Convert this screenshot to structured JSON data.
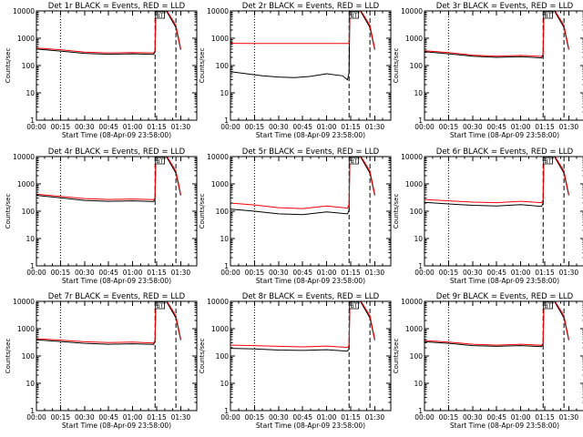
{
  "figure": {
    "xlabel": "Start Time (08-Apr-09 23:58:00)",
    "ylabel": "Counts/sec",
    "bt_label": "BT",
    "colors": {
      "events": "#000000",
      "lld": "#ff0000",
      "background": "#ffffff"
    }
  },
  "chart_data": [
    {
      "type": "line",
      "title": "Det 1r BLACK = Events, RED = LLD",
      "xlabel": "Start Time (08-Apr-09 23:58:00)",
      "ylabel": "Counts/sec",
      "x_ticks": [
        "00:00",
        "00:15",
        "00:30",
        "00:45",
        "01:00",
        "01:15",
        "01:30"
      ],
      "x_tick_minutes": [
        0,
        15,
        30,
        45,
        60,
        75,
        90
      ],
      "xlim_minutes": [
        0,
        100
      ],
      "y_scale": "log",
      "ylim": [
        1,
        10000
      ],
      "y_ticks": [
        "1",
        "10",
        "100",
        "1000",
        "10000"
      ],
      "dotted_vline_minutes": 15,
      "dashed_vline_minutes": [
        74,
        87
      ],
      "bt_marker_minutes": 77,
      "series": [
        {
          "color": "#000000",
          "x_minutes": [
            0,
            15,
            30,
            45,
            60,
            73,
            74,
            74.5,
            77,
            81,
            87,
            90
          ],
          "values": [
            400,
            340,
            280,
            260,
            270,
            255,
            310,
            10000,
            12000,
            10000,
            2500,
            380
          ]
        },
        {
          "color": "#ff0000",
          "x_minutes": [
            0,
            15,
            30,
            45,
            60,
            73,
            74,
            74.5,
            77,
            81,
            87,
            90
          ],
          "values": [
            440,
            380,
            310,
            290,
            300,
            290,
            340,
            10000,
            13000,
            11000,
            3000,
            420
          ]
        }
      ]
    },
    {
      "type": "line",
      "title": "Det 2r BLACK = Events, RED = LLD",
      "xlabel": "Start Time (08-Apr-09 23:58:00)",
      "ylabel": "Counts/sec",
      "x_ticks": [
        "00:00",
        "00:15",
        "00:30",
        "00:45",
        "01:00",
        "01:15",
        "01:30"
      ],
      "x_tick_minutes": [
        0,
        15,
        30,
        45,
        60,
        75,
        90
      ],
      "xlim_minutes": [
        0,
        100
      ],
      "y_scale": "log",
      "ylim": [
        1,
        10000
      ],
      "y_ticks": [
        "1",
        "10",
        "100",
        "1000",
        "10000"
      ],
      "dotted_vline_minutes": 15,
      "dashed_vline_minutes": [
        74,
        87
      ],
      "bt_marker_minutes": 77,
      "series": [
        {
          "color": "#000000",
          "x_minutes": [
            0,
            10,
            20,
            30,
            40,
            50,
            60,
            70,
            73,
            74,
            74.5,
            77,
            81,
            87,
            90
          ],
          "values": [
            60,
            50,
            42,
            38,
            36,
            40,
            50,
            42,
            30,
            55,
            10000,
            12000,
            10000,
            2500,
            380
          ]
        },
        {
          "color": "#ff0000",
          "x_minutes": [
            0,
            15,
            30,
            45,
            60,
            73,
            74,
            74.5,
            77,
            81,
            87,
            90
          ],
          "values": [
            650,
            640,
            640,
            640,
            645,
            645,
            650,
            10000,
            13000,
            11000,
            3000,
            420
          ]
        }
      ]
    },
    {
      "type": "line",
      "title": "Det 3r BLACK = Events, RED = LLD",
      "xlabel": "Start Time (08-Apr-09 23:58:00)",
      "ylabel": "Counts/sec",
      "x_ticks": [
        "00:00",
        "00:15",
        "00:30",
        "00:45",
        "01:00",
        "01:15",
        "01:30"
      ],
      "x_tick_minutes": [
        0,
        15,
        30,
        45,
        60,
        75,
        90
      ],
      "xlim_minutes": [
        0,
        100
      ],
      "y_scale": "log",
      "ylim": [
        1,
        10000
      ],
      "y_ticks": [
        "1",
        "10",
        "100",
        "1000",
        "10000"
      ],
      "dotted_vline_minutes": 15,
      "dashed_vline_minutes": [
        74,
        87
      ],
      "bt_marker_minutes": 77,
      "series": [
        {
          "color": "#000000",
          "x_minutes": [
            0,
            15,
            30,
            45,
            60,
            73,
            74,
            74.5,
            77,
            81,
            87,
            90
          ],
          "values": [
            320,
            270,
            220,
            200,
            210,
            190,
            230,
            10000,
            12000,
            10000,
            2500,
            380
          ]
        },
        {
          "color": "#ff0000",
          "x_minutes": [
            0,
            15,
            30,
            45,
            60,
            73,
            74,
            74.5,
            77,
            81,
            87,
            90
          ],
          "values": [
            350,
            300,
            240,
            220,
            235,
            215,
            255,
            10000,
            13000,
            11000,
            3000,
            420
          ]
        }
      ]
    },
    {
      "type": "line",
      "title": "Det 4r BLACK = Events, RED = LLD",
      "xlabel": "Start Time (08-Apr-09 23:58:00)",
      "ylabel": "Counts/sec",
      "x_ticks": [
        "00:00",
        "00:15",
        "00:30",
        "00:45",
        "01:00",
        "01:15",
        "01:30"
      ],
      "x_tick_minutes": [
        0,
        15,
        30,
        45,
        60,
        75,
        90
      ],
      "xlim_minutes": [
        0,
        100
      ],
      "y_scale": "log",
      "ylim": [
        1,
        10000
      ],
      "y_ticks": [
        "1",
        "10",
        "100",
        "1000",
        "10000"
      ],
      "dotted_vline_minutes": 15,
      "dashed_vline_minutes": [
        74,
        87
      ],
      "bt_marker_minutes": 77,
      "series": [
        {
          "color": "#000000",
          "x_minutes": [
            0,
            15,
            30,
            45,
            60,
            73,
            74,
            74.5,
            77,
            81,
            87,
            90
          ],
          "values": [
            380,
            310,
            250,
            230,
            240,
            225,
            270,
            10000,
            12000,
            10000,
            2500,
            380
          ]
        },
        {
          "color": "#ff0000",
          "x_minutes": [
            0,
            15,
            30,
            45,
            60,
            73,
            74,
            74.5,
            77,
            81,
            87,
            90
          ],
          "values": [
            420,
            350,
            290,
            270,
            280,
            265,
            310,
            10000,
            13000,
            11000,
            3000,
            420
          ]
        }
      ]
    },
    {
      "type": "line",
      "title": "Det 5r BLACK = Events, RED = LLD",
      "xlabel": "Start Time (08-Apr-09 23:58:00)",
      "ylabel": "Counts/sec",
      "x_ticks": [
        "00:00",
        "00:15",
        "00:30",
        "00:45",
        "01:00",
        "01:15",
        "01:30"
      ],
      "x_tick_minutes": [
        0,
        15,
        30,
        45,
        60,
        75,
        90
      ],
      "xlim_minutes": [
        0,
        100
      ],
      "y_scale": "log",
      "ylim": [
        1,
        10000
      ],
      "y_ticks": [
        "1",
        "10",
        "100",
        "1000",
        "10000"
      ],
      "dotted_vline_minutes": 15,
      "dashed_vline_minutes": [
        74,
        87
      ],
      "bt_marker_minutes": 77,
      "series": [
        {
          "color": "#000000",
          "x_minutes": [
            0,
            15,
            30,
            45,
            60,
            73,
            74,
            74.5,
            77,
            81,
            87,
            90
          ],
          "values": [
            120,
            100,
            80,
            75,
            95,
            80,
            110,
            10000,
            12000,
            10000,
            2500,
            380
          ]
        },
        {
          "color": "#ff0000",
          "x_minutes": [
            0,
            15,
            30,
            45,
            60,
            73,
            74,
            74.5,
            77,
            81,
            87,
            90
          ],
          "values": [
            200,
            170,
            135,
            125,
            155,
            130,
            180,
            10000,
            13000,
            11000,
            3000,
            420
          ]
        }
      ]
    },
    {
      "type": "line",
      "title": "Det 6r BLACK = Events, RED = LLD",
      "xlabel": "Start Time (08-Apr-09 23:58:00)",
      "ylabel": "Counts/sec",
      "x_ticks": [
        "00:00",
        "00:15",
        "00:30",
        "00:45",
        "01:00",
        "01:15",
        "01:30"
      ],
      "x_tick_minutes": [
        0,
        15,
        30,
        45,
        60,
        75,
        90
      ],
      "xlim_minutes": [
        0,
        100
      ],
      "y_scale": "log",
      "ylim": [
        1,
        10000
      ],
      "y_ticks": [
        "1",
        "10",
        "100",
        "1000",
        "10000"
      ],
      "dotted_vline_minutes": 15,
      "dashed_vline_minutes": [
        74,
        87
      ],
      "bt_marker_minutes": 77,
      "series": [
        {
          "color": "#000000",
          "x_minutes": [
            0,
            15,
            30,
            45,
            60,
            73,
            74,
            74.5,
            77,
            81,
            87,
            90
          ],
          "values": [
            210,
            185,
            165,
            155,
            175,
            150,
            200,
            10000,
            12000,
            10000,
            2500,
            380
          ]
        },
        {
          "color": "#ff0000",
          "x_minutes": [
            0,
            15,
            30,
            45,
            60,
            73,
            74,
            74.5,
            77,
            81,
            87,
            90
          ],
          "values": [
            270,
            240,
            215,
            205,
            230,
            205,
            260,
            10000,
            13000,
            11000,
            3000,
            420
          ]
        }
      ]
    },
    {
      "type": "line",
      "title": "Det 7r BLACK = Events, RED = LLD",
      "xlabel": "Start Time (08-Apr-09 23:58:00)",
      "ylabel": "Counts/sec",
      "x_ticks": [
        "00:00",
        "00:15",
        "00:30",
        "00:45",
        "01:00",
        "01:15",
        "01:30"
      ],
      "x_tick_minutes": [
        0,
        15,
        30,
        45,
        60,
        75,
        90
      ],
      "xlim_minutes": [
        0,
        100
      ],
      "y_scale": "log",
      "ylim": [
        1,
        10000
      ],
      "y_ticks": [
        "1",
        "10",
        "100",
        "1000",
        "10000"
      ],
      "dotted_vline_minutes": 15,
      "dashed_vline_minutes": [
        74,
        87
      ],
      "bt_marker_minutes": 77,
      "series": [
        {
          "color": "#000000",
          "x_minutes": [
            0,
            15,
            30,
            45,
            60,
            73,
            74,
            74.5,
            77,
            81,
            87,
            90
          ],
          "values": [
            390,
            340,
            290,
            270,
            280,
            265,
            320,
            10000,
            12000,
            10000,
            2500,
            380
          ]
        },
        {
          "color": "#ff0000",
          "x_minutes": [
            0,
            15,
            30,
            45,
            60,
            73,
            74,
            74.5,
            77,
            81,
            87,
            90
          ],
          "values": [
            430,
            380,
            330,
            310,
            320,
            300,
            360,
            10000,
            13000,
            11000,
            3000,
            420
          ]
        }
      ]
    },
    {
      "type": "line",
      "title": "Det 8r BLACK = Events, RED = LLD",
      "xlabel": "Start Time (08-Apr-09 23:58:00)",
      "ylabel": "Counts/sec",
      "x_ticks": [
        "00:00",
        "00:15",
        "00:30",
        "00:45",
        "01:00",
        "01:15",
        "01:30"
      ],
      "x_tick_minutes": [
        0,
        15,
        30,
        45,
        60,
        75,
        90
      ],
      "xlim_minutes": [
        0,
        100
      ],
      "y_scale": "log",
      "ylim": [
        1,
        10000
      ],
      "y_ticks": [
        "1",
        "10",
        "100",
        "1000",
        "10000"
      ],
      "dotted_vline_minutes": 15,
      "dashed_vline_minutes": [
        74,
        87
      ],
      "bt_marker_minutes": 77,
      "series": [
        {
          "color": "#000000",
          "x_minutes": [
            0,
            15,
            30,
            45,
            60,
            73,
            74,
            74.5,
            77,
            81,
            87,
            90
          ],
          "values": [
            190,
            180,
            165,
            160,
            170,
            150,
            190,
            10000,
            12000,
            10000,
            2500,
            380
          ]
        },
        {
          "color": "#ff0000",
          "x_minutes": [
            0,
            15,
            30,
            45,
            60,
            73,
            74,
            74.5,
            77,
            81,
            87,
            90
          ],
          "values": [
            250,
            240,
            225,
            215,
            230,
            205,
            250,
            10000,
            13000,
            11000,
            3000,
            420
          ]
        }
      ]
    },
    {
      "type": "line",
      "title": "Det 9r BLACK = Events, RED = LLD",
      "xlabel": "Start Time (08-Apr-09 23:58:00)",
      "ylabel": "Counts/sec",
      "x_ticks": [
        "00:00",
        "00:15",
        "00:30",
        "00:45",
        "01:00",
        "01:15",
        "01:30"
      ],
      "x_tick_minutes": [
        0,
        15,
        30,
        45,
        60,
        75,
        90
      ],
      "xlim_minutes": [
        0,
        100
      ],
      "y_scale": "log",
      "ylim": [
        1,
        10000
      ],
      "y_ticks": [
        "1",
        "10",
        "100",
        "1000",
        "10000"
      ],
      "dotted_vline_minutes": 15,
      "dashed_vline_minutes": [
        74,
        87
      ],
      "bt_marker_minutes": 77,
      "series": [
        {
          "color": "#000000",
          "x_minutes": [
            0,
            15,
            30,
            45,
            60,
            73,
            74,
            74.5,
            77,
            81,
            87,
            90
          ],
          "values": [
            330,
            290,
            240,
            225,
            240,
            220,
            260,
            10000,
            12000,
            10000,
            2500,
            380
          ]
        },
        {
          "color": "#ff0000",
          "x_minutes": [
            0,
            15,
            30,
            45,
            60,
            73,
            74,
            74.5,
            77,
            81,
            87,
            90
          ],
          "values": [
            370,
            320,
            270,
            250,
            270,
            245,
            290,
            10000,
            13000,
            11000,
            3000,
            420
          ]
        }
      ]
    }
  ]
}
